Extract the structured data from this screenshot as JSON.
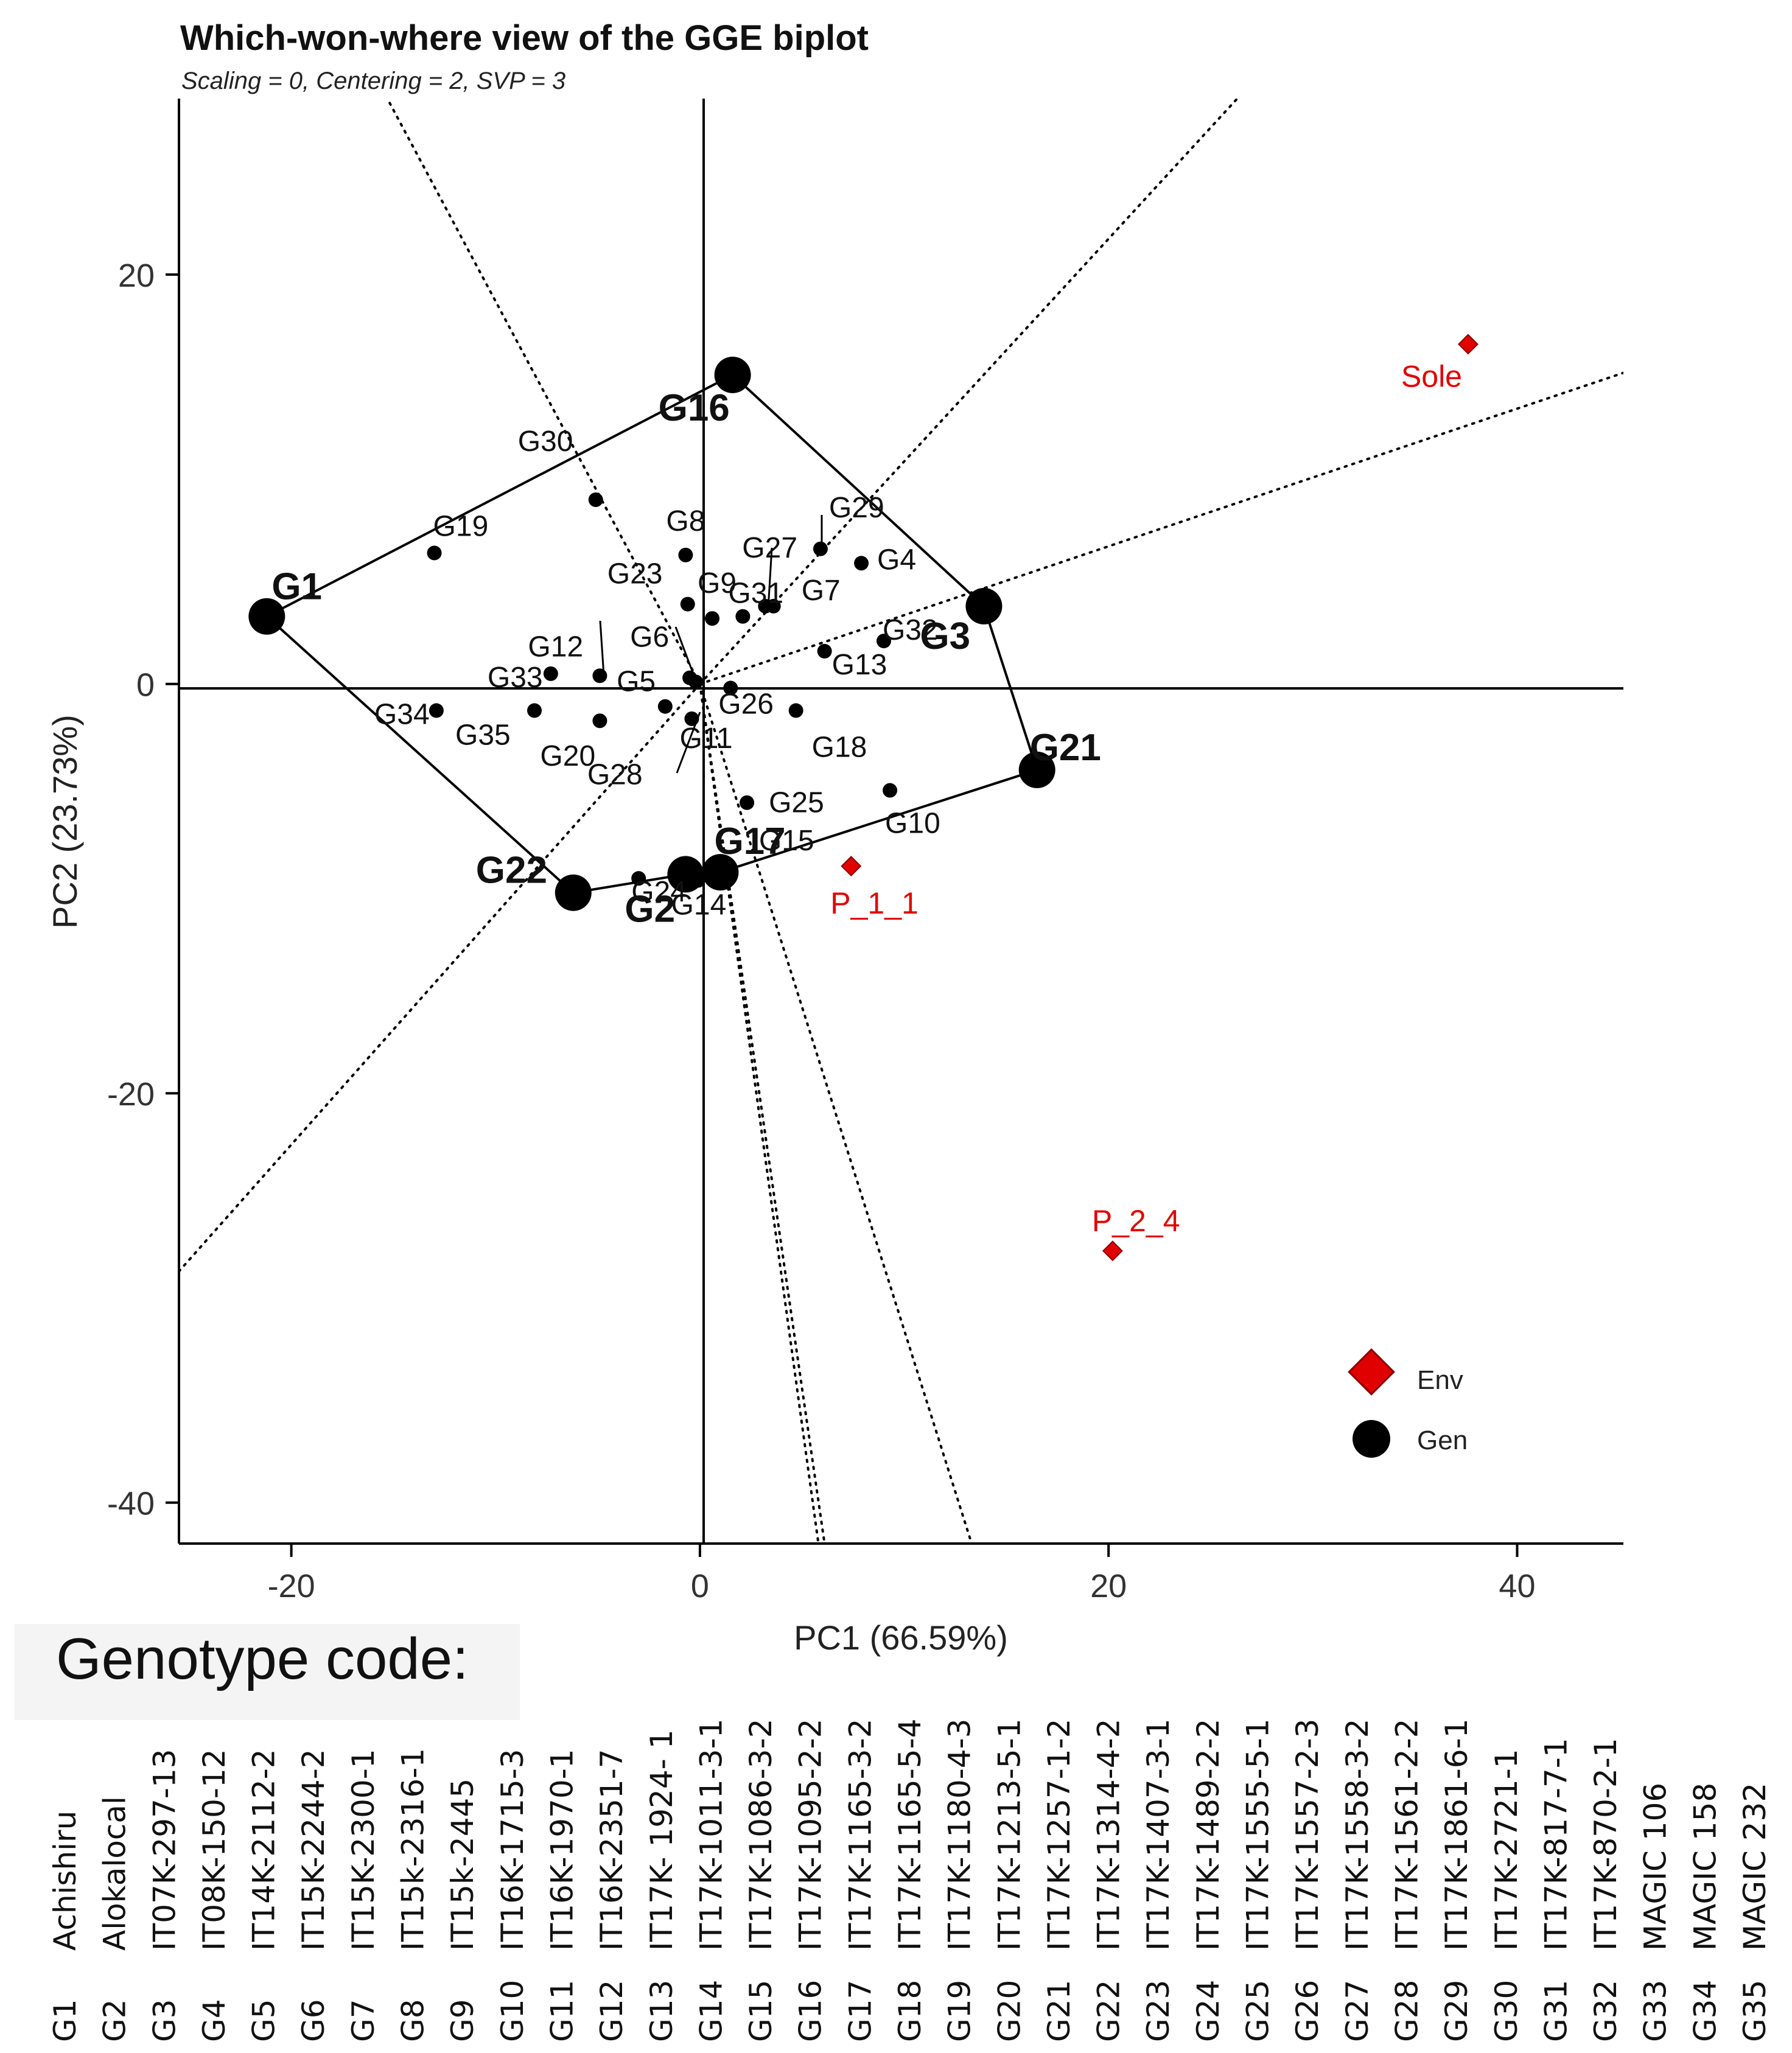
{
  "chart_data": {
    "type": "scatter",
    "title": "Which-won-where view of the GGE biplot",
    "subtitle": "Scaling = 0, Centering = 2, SVP = 3",
    "xlabel": "PC1 (66.59%)",
    "ylabel": "PC2 (23.73%)",
    "xlim": [
      -25.5,
      45.2
    ],
    "ylim": [
      -42.0,
      28.6
    ],
    "xticks": [
      -20,
      0,
      20,
      40
    ],
    "yticks": [
      20,
      0,
      -20,
      -40
    ],
    "genotypes": [
      {
        "id": "G1",
        "x": -21.2,
        "y": 3.3,
        "vertex": true
      },
      {
        "id": "G2",
        "x": -0.7,
        "y": -9.3,
        "vertex": true
      },
      {
        "id": "G3",
        "x": 13.9,
        "y": 3.8,
        "vertex": true
      },
      {
        "id": "G4",
        "x": 7.9,
        "y": 5.9
      },
      {
        "id": "G5",
        "x": -0.5,
        "y": 0.3
      },
      {
        "id": "G6",
        "x": -0.2,
        "y": 0.1
      },
      {
        "id": "G7",
        "x": 3.6,
        "y": 3.8
      },
      {
        "id": "G8",
        "x": -0.7,
        "y": 6.3
      },
      {
        "id": "G9",
        "x": 0.6,
        "y": 3.2
      },
      {
        "id": "G10",
        "x": 9.3,
        "y": -5.2
      },
      {
        "id": "G11",
        "x": -0.4,
        "y": -1.7
      },
      {
        "id": "G12",
        "x": -4.9,
        "y": 0.4
      },
      {
        "id": "G13",
        "x": 6.1,
        "y": 1.6
      },
      {
        "id": "G14",
        "x": -0.1,
        "y": -9.6
      },
      {
        "id": "G15",
        "x": 1.4,
        "y": -9.2
      },
      {
        "id": "G16",
        "x": 1.6,
        "y": 15.1,
        "vertex": true
      },
      {
        "id": "G17",
        "x": 1.0,
        "y": -9.2,
        "vertex": true
      },
      {
        "id": "G18",
        "x": 4.7,
        "y": -1.3
      },
      {
        "id": "G19",
        "x": -13.0,
        "y": 6.4
      },
      {
        "id": "G20",
        "x": -4.9,
        "y": -1.8
      },
      {
        "id": "G21",
        "x": 16.5,
        "y": -4.2,
        "vertex": true
      },
      {
        "id": "G22",
        "x": -6.2,
        "y": -10.2,
        "vertex": true
      },
      {
        "id": "G23",
        "x": -0.6,
        "y": 3.9
      },
      {
        "id": "G24",
        "x": -3.0,
        "y": -9.5
      },
      {
        "id": "G25",
        "x": 2.3,
        "y": -5.8
      },
      {
        "id": "G26",
        "x": 1.5,
        "y": -0.2
      },
      {
        "id": "G27",
        "x": 3.2,
        "y": 3.8
      },
      {
        "id": "G28",
        "x": -1.7,
        "y": -1.1
      },
      {
        "id": "G29",
        "x": 5.9,
        "y": 6.6
      },
      {
        "id": "G30",
        "x": -5.1,
        "y": 9.0
      },
      {
        "id": "G31",
        "x": 2.1,
        "y": 3.3
      },
      {
        "id": "G32",
        "x": 9.0,
        "y": 2.1
      },
      {
        "id": "G33",
        "x": -7.3,
        "y": 0.5
      },
      {
        "id": "G34",
        "x": -12.9,
        "y": -1.3
      },
      {
        "id": "G35",
        "x": -8.1,
        "y": -1.3
      }
    ],
    "environments": [
      {
        "id": "Sole",
        "x": 37.6,
        "y": 16.6
      },
      {
        "id": "P_1_1",
        "x": 7.4,
        "y": -8.9
      },
      {
        "id": "P_2_4",
        "x": 20.2,
        "y": -27.7
      }
    ],
    "polygon_order": [
      "G16",
      "G3",
      "G21",
      "G17",
      "G2",
      "G22",
      "G1"
    ],
    "rays": [
      {
        "x": -15.3,
        "y": 28.6
      },
      {
        "x": 26.3,
        "y": 28.6
      },
      {
        "x": 45.2,
        "y": 15.2
      },
      {
        "x": -25.5,
        "y": -28.7
      },
      {
        "x": 5.8,
        "y": -42.0
      },
      {
        "x": 6.1,
        "y": -42.0
      },
      {
        "x": 13.3,
        "y": -42.0
      }
    ],
    "legend": [
      {
        "label": "Env",
        "color": "#e00000",
        "shape": "diamond"
      },
      {
        "label": "Gen",
        "color": "#000000",
        "shape": "circle"
      }
    ],
    "legend_position": "bottom-right"
  },
  "footer": {
    "title": "Genotype code:",
    "codes": [
      {
        "id": "G1",
        "name": "Achishiru"
      },
      {
        "id": "G2",
        "name": "Alokalocal"
      },
      {
        "id": "G3",
        "name": "IT07K-297-13"
      },
      {
        "id": "G4",
        "name": "IT08K-150-12"
      },
      {
        "id": "G5",
        "name": "IT14K-2112-2"
      },
      {
        "id": "G6",
        "name": "IT15K-2244-2"
      },
      {
        "id": "G7",
        "name": "IT15K-2300-1"
      },
      {
        "id": "G8",
        "name": "IT15k-2316-1"
      },
      {
        "id": "G9",
        "name": "IT15k-2445"
      },
      {
        "id": "G10",
        "name": "IT16K-1715-3"
      },
      {
        "id": "G11",
        "name": "IT16K-1970-1"
      },
      {
        "id": "G12",
        "name": "IT16K-2351-7"
      },
      {
        "id": "G13",
        "name": "IT17K- 1924- 1"
      },
      {
        "id": "G14",
        "name": "IT17K-1011-3-1"
      },
      {
        "id": "G15",
        "name": "IT17K-1086-3-2"
      },
      {
        "id": "G16",
        "name": "IT17K-1095-2-2"
      },
      {
        "id": "G17",
        "name": "IT17K-1165-3-2"
      },
      {
        "id": "G18",
        "name": "IT17K-1165-5-4"
      },
      {
        "id": "G19",
        "name": "IT17K-1180-4-3"
      },
      {
        "id": "G20",
        "name": "IT17K-1213-5-1"
      },
      {
        "id": "G21",
        "name": "IT17K-1257-1-2"
      },
      {
        "id": "G22",
        "name": "IT17K-1314-4-2"
      },
      {
        "id": "G23",
        "name": "IT17K-1407-3-1"
      },
      {
        "id": "G24",
        "name": "IT17K-1489-2-2"
      },
      {
        "id": "G25",
        "name": "IT17K-1555-5-1"
      },
      {
        "id": "G26",
        "name": "IT17K-1557-2-3"
      },
      {
        "id": "G27",
        "name": "IT17K-1558-3-2"
      },
      {
        "id": "G28",
        "name": "IT17K-1561-2-2"
      },
      {
        "id": "G29",
        "name": "IT17K-1861-6-1"
      },
      {
        "id": "G30",
        "name": "IT17K-2721-1"
      },
      {
        "id": "G31",
        "name": "IT17K-817-7-1"
      },
      {
        "id": "G32",
        "name": "IT17K-870-2-1"
      },
      {
        "id": "G33",
        "name": "MAGIC 106"
      },
      {
        "id": "G34",
        "name": "MAGIC 158"
      },
      {
        "id": "G35",
        "name": "MAGIC 232"
      }
    ]
  }
}
